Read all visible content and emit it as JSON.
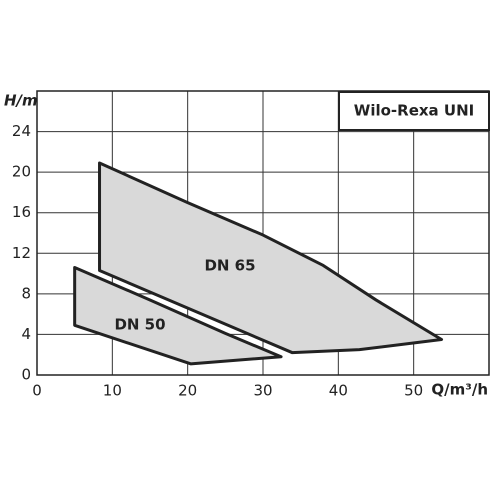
{
  "chart_data": {
    "type": "polygon",
    "title": "Wilo-Rexa UNI",
    "y_label": "H/m",
    "x_label": "Q/m³/h",
    "xlim": [
      0,
      60
    ],
    "ylim": [
      0,
      28
    ],
    "xticks": [
      0,
      10,
      20,
      30,
      40,
      50
    ],
    "yticks": [
      0,
      4,
      8,
      12,
      16,
      20,
      24
    ],
    "grid": true,
    "series": [
      {
        "name": "DN 65",
        "color": "#d9d9d9",
        "x": [
          8.3,
          20,
          30,
          38,
          45,
          53.7,
          42.8,
          33.9,
          8.3
        ],
        "y": [
          20.9,
          17,
          13.8,
          10.8,
          7.4,
          3.5,
          2.5,
          2.2,
          10.3
        ]
      },
      {
        "name": "DN 50",
        "color": "#d9d9d9",
        "x": [
          5,
          15,
          25,
          32.4,
          20.4,
          5
        ],
        "y": [
          10.6,
          7.4,
          4.1,
          1.8,
          1.1,
          4.9
        ]
      }
    ]
  }
}
